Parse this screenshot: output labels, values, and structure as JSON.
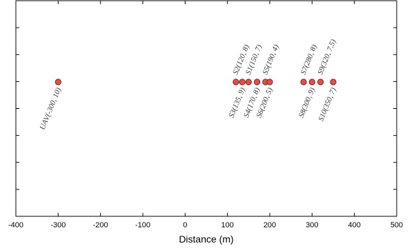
{
  "chart_data": {
    "type": "scatter",
    "xlabel": "Distance (m)",
    "ylabel": "",
    "xlim": [
      -400,
      500
    ],
    "xticks": [
      "-400",
      "-300",
      "-200",
      "-100",
      "0",
      "100",
      "200",
      "300",
      "400",
      "500"
    ],
    "grid": false,
    "marker_color": "#e0504a",
    "points": [
      {
        "label": "UAV(-300,  10)",
        "x": -300,
        "label_side": "below"
      },
      {
        "label": "S2(120,  8)",
        "x": 120,
        "label_side": "above"
      },
      {
        "label": "S3(135,  9)",
        "x": 135,
        "label_side": "below"
      },
      {
        "label": "S1(150,  7)",
        "x": 150,
        "label_side": "above"
      },
      {
        "label": "S4(170,  8)",
        "x": 170,
        "label_side": "below"
      },
      {
        "label": "S5(190,  4)",
        "x": 190,
        "label_side": "above"
      },
      {
        "label": "S6(200,  5)",
        "x": 200,
        "label_side": "below"
      },
      {
        "label": "S7(280,  8)",
        "x": 280,
        "label_side": "above"
      },
      {
        "label": "S8(300,  9)",
        "x": 300,
        "label_side": "below"
      },
      {
        "label": "S9(320,  7.5)",
        "x": 320,
        "label_side": "above"
      },
      {
        "label": "S10(350,  7)",
        "x": 350,
        "label_side": "below"
      }
    ]
  }
}
